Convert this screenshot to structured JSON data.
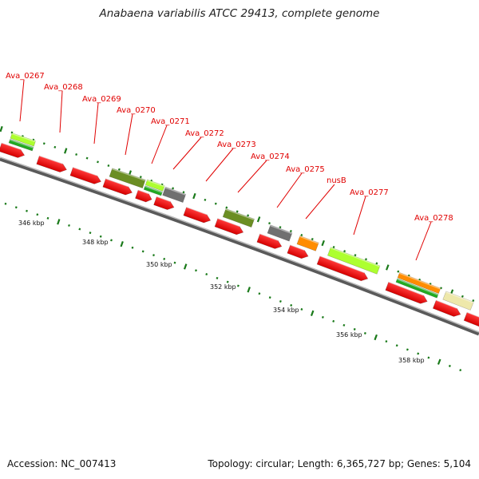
{
  "title": "Anabaena variabilis ATCC 29413, complete genome",
  "footer": {
    "accession": "Accession: NC_007413",
    "summary": "Topology: circular; Length: 6,365,727 bp; Genes: 5,104"
  },
  "scale_labels": [
    "346 kbp",
    "348 kbp",
    "350 kbp",
    "352 kbp",
    "354 kbp",
    "356 kbp",
    "358 kbp"
  ],
  "gene_labels": [
    "Ava_0267",
    "Ava_0268",
    "Ava_0269",
    "Ava_0270",
    "Ava_0271",
    "Ava_0272",
    "Ava_0273",
    "Ava_0274",
    "Ava_0275",
    "nusB",
    "Ava_0277",
    "Ava_0278"
  ],
  "colors": {
    "cds": "#ff0000",
    "label": "#e00000",
    "tick": "#1a7a1a",
    "backbone": "#777777",
    "olive": "#6b8e23",
    "lime": "#adff2f",
    "green": "#22aa22",
    "gray": "#707070",
    "orange": "#ff8c00",
    "khaki": "#eee8aa"
  }
}
